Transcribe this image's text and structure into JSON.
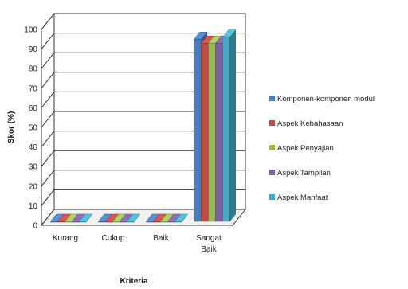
{
  "chart_data": {
    "type": "bar",
    "style": "3d-clustered-column",
    "title": "",
    "xlabel": "Kriteria",
    "ylabel": "Skor (%)",
    "ylim": [
      0,
      100
    ],
    "ytick_step": 10,
    "categories": [
      "Kurang",
      "Cukup",
      "Baik",
      "Sangat Baik"
    ],
    "series": [
      {
        "name": "Komponen-komponen modul",
        "color": "#4a7ebb",
        "values": [
          0,
          0,
          0,
          93
        ]
      },
      {
        "name": "Aspek Kebahasaan",
        "color": "#be4b48",
        "values": [
          0,
          0,
          0,
          91
        ]
      },
      {
        "name": "Aspek Penyajian",
        "color": "#98b954",
        "values": [
          0,
          0,
          0,
          91
        ]
      },
      {
        "name": "Aspek Tampilan",
        "color": "#7d60a0",
        "values": [
          0,
          0,
          0,
          91
        ]
      },
      {
        "name": "Aspek Manfaat",
        "color": "#46aac5",
        "values": [
          0,
          0,
          0,
          94
        ]
      }
    ],
    "grid": true,
    "legend": "right"
  }
}
